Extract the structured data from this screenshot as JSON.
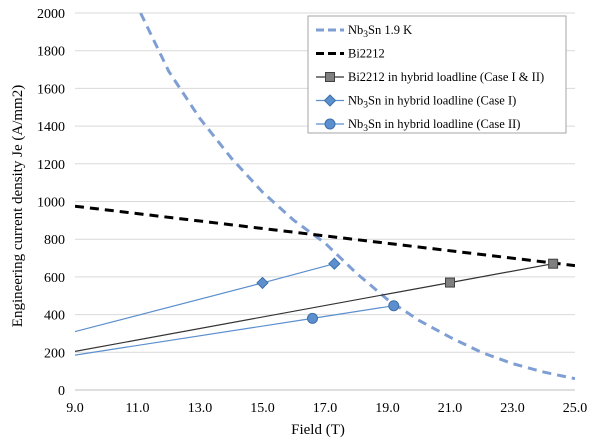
{
  "chart_data": {
    "type": "line",
    "xlabel": "Field (T)",
    "ylabel": "Engineering current density Je (A/mm2)",
    "xlim": [
      9,
      25
    ],
    "ylim": [
      0,
      2000
    ],
    "x_ticks": [
      "9.0",
      "11.0",
      "13.0",
      "15.0",
      "17.0",
      "19.0",
      "21.0",
      "23.0",
      "25.0"
    ],
    "y_ticks": [
      "0",
      "200",
      "400",
      "600",
      "800",
      "1000",
      "1200",
      "1400",
      "1600",
      "1800",
      "2000"
    ],
    "grid": "horizontal",
    "legend_position": "top-right",
    "colors": {
      "nb3sn": "#7f9fd4",
      "bi2212": "#000000",
      "hybrid_bi": "#333333",
      "hybrid_bi_marker": "#7f7f7f",
      "hybrid_nb": "#5b8fce"
    },
    "series": [
      {
        "key": "nb3sn_1_9k",
        "legend": {
          "base": "Nb",
          "sub": "3",
          "rest": "Sn 1.9 K"
        },
        "style": "dashed-light",
        "x": [
          11.1,
          12,
          13,
          14,
          15,
          16,
          17,
          18,
          19,
          20,
          21,
          22,
          23,
          24,
          25
        ],
        "y": [
          2000,
          1690,
          1440,
          1230,
          1050,
          900,
          780,
          620,
          480,
          370,
          280,
          200,
          140,
          95,
          60
        ]
      },
      {
        "key": "bi2212",
        "legend": {
          "base": "Bi2212",
          "sub": "",
          "rest": ""
        },
        "style": "dashed-black",
        "x": [
          9,
          25
        ],
        "y": [
          975,
          660
        ]
      },
      {
        "key": "bi2212_hybrid",
        "legend": {
          "base": "Bi2212 in hybrid loadline (Case I & II)",
          "sub": "",
          "rest": ""
        },
        "style": "line-square",
        "x": [
          9,
          21,
          24.3
        ],
        "y": [
          205,
          570,
          670
        ],
        "markers": [
          false,
          true,
          true
        ]
      },
      {
        "key": "nb3sn_hybrid_case1",
        "legend": {
          "base": "Nb",
          "sub": "3",
          "rest": "Sn in hybrid loadline (Case I)"
        },
        "style": "line-diamond",
        "x": [
          9,
          15,
          17.3
        ],
        "y": [
          310,
          568,
          670
        ],
        "markers": [
          false,
          true,
          true
        ]
      },
      {
        "key": "nb3sn_hybrid_case2",
        "legend": {
          "base": "Nb",
          "sub": "3",
          "rest": "Sn in hybrid loadline (Case II)"
        },
        "style": "line-circle",
        "x": [
          9,
          16.6,
          19.2
        ],
        "y": [
          185,
          380,
          447
        ],
        "markers": [
          false,
          true,
          true
        ]
      }
    ]
  }
}
